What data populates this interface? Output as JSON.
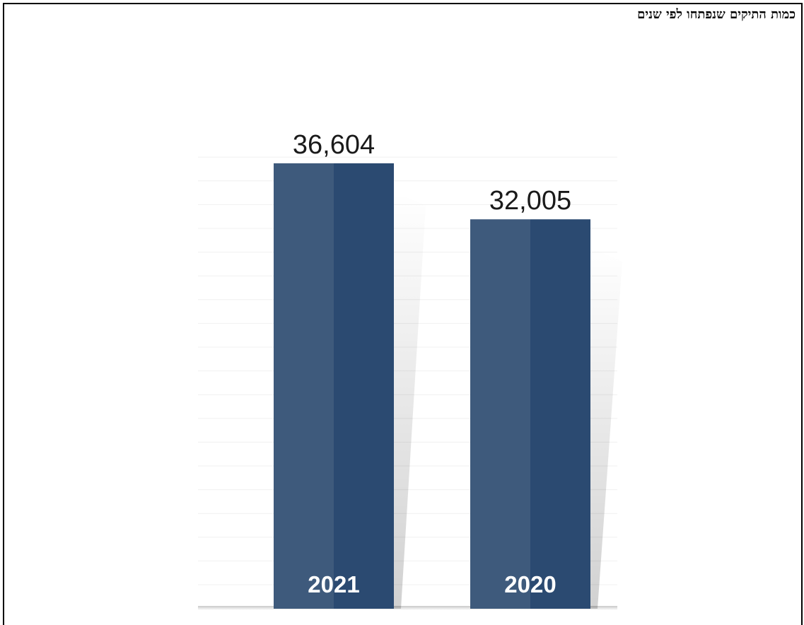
{
  "title": "כמות התיקים שנפתחו לפי שנים",
  "colors": {
    "bar_light": "#3e5a7c",
    "bar_dark": "#2b4a71",
    "grid": "#f0f0f0",
    "value_text": "#1a1a1a",
    "category_text": "#ffffff"
  },
  "chart_data": {
    "type": "bar",
    "categories": [
      "2021",
      "2020"
    ],
    "values": [
      36604,
      32005
    ],
    "value_labels": [
      "36,604",
      "32,005"
    ],
    "title": "כמות התיקים שנפתחו לפי שנים",
    "xlabel": "",
    "ylabel": "",
    "grid": true,
    "legend": "none"
  }
}
